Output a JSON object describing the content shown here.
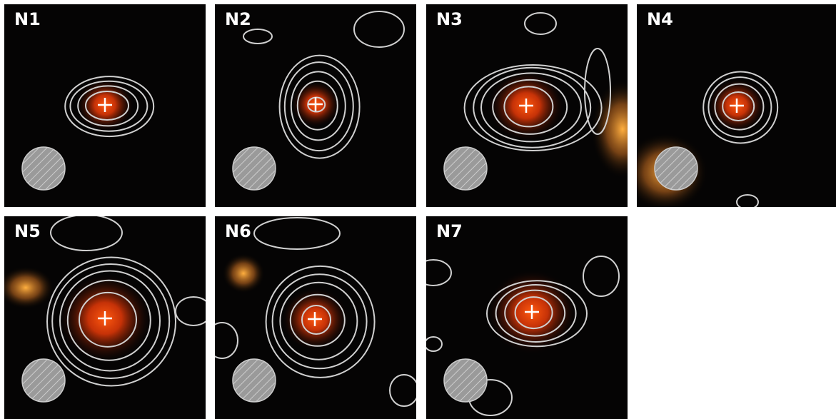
{
  "panels": [
    {
      "label": "N1"
    },
    {
      "label": "N2"
    },
    {
      "label": "N3"
    },
    {
      "label": "N4"
    },
    {
      "label": "N5"
    },
    {
      "label": "N6"
    },
    {
      "label": "N7"
    }
  ]
}
